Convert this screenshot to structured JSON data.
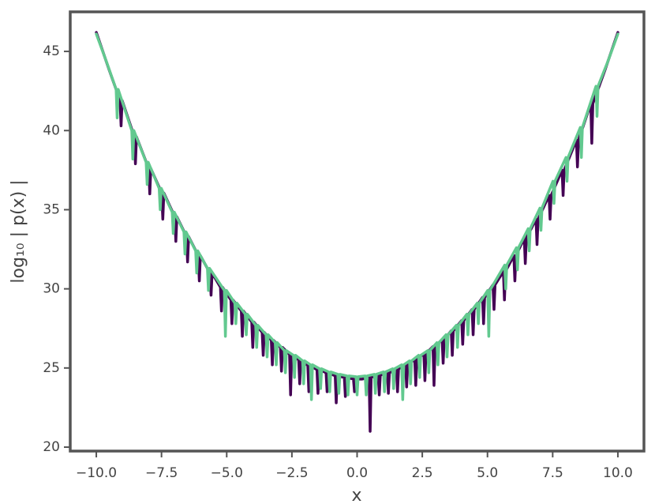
{
  "chart_data": {
    "type": "line",
    "xlabel": "x",
    "ylabel": "log₁₀ | p(x) |",
    "xlim": [
      -11,
      11
    ],
    "ylim": [
      19.75,
      47.5
    ],
    "xticks": [
      {
        "value": -10,
        "label": "−10.0"
      },
      {
        "value": -7.5,
        "label": "−7.5"
      },
      {
        "value": -5,
        "label": "−5.0"
      },
      {
        "value": -2.5,
        "label": "−2.5"
      },
      {
        "value": 0,
        "label": "0.0"
      },
      {
        "value": 2.5,
        "label": "2.5"
      },
      {
        "value": 5,
        "label": "5.0"
      },
      {
        "value": 7.5,
        "label": "7.5"
      },
      {
        "value": 10,
        "label": "10.0"
      }
    ],
    "yticks": [
      20,
      25,
      30,
      35,
      40,
      45
    ],
    "grid": false,
    "series": [
      {
        "color": "#440154",
        "x": [
          -10,
          -9.5,
          -9.09,
          -9.05,
          -9.01,
          -8.54,
          -8.5,
          -8.46,
          -7.99,
          -7.95,
          -7.91,
          -7.49,
          -7.45,
          -7.41,
          -6.99,
          -6.95,
          -6.91,
          -6.54,
          -6.5,
          -6.46,
          -6.09,
          -6.05,
          -6.01,
          -5.64,
          -5.6,
          -5.56,
          -5.24,
          -5.2,
          -5.16,
          -4.84,
          -4.8,
          -4.76,
          -4.44,
          -4.4,
          -4.36,
          -4.04,
          -4.0,
          -3.96,
          -3.64,
          -3.6,
          -3.56,
          -3.29,
          -3.25,
          -3.21,
          -2.94,
          -2.9,
          -2.86,
          -2.59,
          -2.55,
          -2.51,
          -2.24,
          -2.2,
          -2.16,
          -1.89,
          -1.85,
          -1.81,
          -1.54,
          -1.5,
          -1.46,
          -1.19,
          -1.15,
          -1.11,
          -0.84,
          -0.8,
          -0.76,
          -0.49,
          -0.45,
          -0.41,
          -0.14,
          -0.1,
          -0.06,
          0.2,
          0.46,
          0.5,
          0.54,
          0.81,
          0.85,
          0.89,
          1.16,
          1.2,
          1.24,
          1.51,
          1.55,
          1.59,
          1.86,
          1.9,
          1.94,
          2.21,
          2.25,
          2.29,
          2.56,
          2.6,
          2.64,
          2.91,
          2.95,
          2.99,
          3.26,
          3.3,
          3.34,
          3.61,
          3.65,
          3.69,
          4.01,
          4.05,
          4.09,
          4.41,
          4.45,
          4.49,
          4.81,
          4.85,
          4.89,
          5.21,
          5.25,
          5.29,
          5.61,
          5.65,
          5.69,
          6.01,
          6.05,
          6.09,
          6.41,
          6.45,
          6.49,
          6.86,
          6.9,
          6.94,
          7.36,
          7.4,
          7.44,
          7.86,
          7.9,
          7.94,
          8.41,
          8.45,
          8.49,
          8.96,
          9.0,
          9.04,
          9.5,
          10
        ],
        "values": [
          46.2,
          43.8,
          41.9,
          40.3,
          41.9,
          39.6,
          37.9,
          39.6,
          37.6,
          36.0,
          37.6,
          36.05,
          34.4,
          36.05,
          34.55,
          33.0,
          34.55,
          33.3,
          31.7,
          33.3,
          32.1,
          30.5,
          32.1,
          31.0,
          29.6,
          31.0,
          30.1,
          28.6,
          30.1,
          29.3,
          27.8,
          29.3,
          28.6,
          27.0,
          28.6,
          27.9,
          26.3,
          27.9,
          27.25,
          25.8,
          27.25,
          26.75,
          25.2,
          26.75,
          26.3,
          24.8,
          26.3,
          25.85,
          23.3,
          25.85,
          25.5,
          24.0,
          25.5,
          25.15,
          23.5,
          25.15,
          24.9,
          23.4,
          24.9,
          24.7,
          23.5,
          24.7,
          24.5,
          22.8,
          24.5,
          24.4,
          23.2,
          24.4,
          24.3,
          23.5,
          24.3,
          24.3,
          24.4,
          21.0,
          24.4,
          24.55,
          23.3,
          24.55,
          24.7,
          23.4,
          24.7,
          24.95,
          23.5,
          24.95,
          25.2,
          23.8,
          25.2,
          25.55,
          23.9,
          25.55,
          25.9,
          24.2,
          25.9,
          26.35,
          23.9,
          26.35,
          26.8,
          25.3,
          26.8,
          27.35,
          25.8,
          27.35,
          28.0,
          26.5,
          28.0,
          28.7,
          27.1,
          28.7,
          29.45,
          27.8,
          29.45,
          30.25,
          28.7,
          30.25,
          31.1,
          29.3,
          31.1,
          32.1,
          30.5,
          32.1,
          33.2,
          31.6,
          33.2,
          34.4,
          32.8,
          34.4,
          35.9,
          34.4,
          35.9,
          37.5,
          35.9,
          37.5,
          39.4,
          37.7,
          39.4,
          41.7,
          39.2,
          41.7,
          43.8,
          46.2
        ]
      },
      {
        "color": "#62c98f",
        "x": [
          -10,
          -9.6,
          -9.24,
          -9.2,
          -9.16,
          -8.64,
          -8.6,
          -8.56,
          -8.09,
          -8.05,
          -8.01,
          -7.59,
          -7.55,
          -7.51,
          -7.09,
          -7.05,
          -7.01,
          -6.64,
          -6.6,
          -6.56,
          -6.19,
          -6.15,
          -6.11,
          -5.74,
          -5.7,
          -5.66,
          -5.09,
          -5.05,
          -5.01,
          -4.69,
          -4.65,
          -4.61,
          -4.29,
          -4.25,
          -4.21,
          -3.89,
          -3.85,
          -3.81,
          -3.49,
          -3.45,
          -3.41,
          -3.14,
          -3.1,
          -3.06,
          -2.79,
          -2.75,
          -2.71,
          -2.44,
          -2.4,
          -2.36,
          -2.09,
          -2.05,
          -2.01,
          -1.79,
          -1.75,
          -1.71,
          -1.44,
          -1.4,
          -1.36,
          -1.09,
          -1.05,
          -1.01,
          -0.74,
          -0.7,
          -0.66,
          -0.39,
          -0.35,
          -0.31,
          -0.04,
          0.0,
          0.04,
          0.31,
          0.35,
          0.39,
          0.66,
          0.7,
          0.74,
          1.01,
          1.05,
          1.09,
          1.36,
          1.4,
          1.44,
          1.71,
          1.75,
          1.79,
          2.01,
          2.05,
          2.09,
          2.36,
          2.4,
          2.44,
          2.71,
          2.75,
          2.79,
          3.06,
          3.1,
          3.14,
          3.41,
          3.45,
          3.49,
          3.81,
          3.85,
          3.89,
          4.21,
          4.25,
          4.29,
          4.61,
          4.65,
          4.69,
          5.01,
          5.05,
          5.09,
          5.66,
          5.7,
          5.74,
          6.11,
          6.15,
          6.19,
          6.56,
          6.6,
          6.64,
          7.01,
          7.05,
          7.09,
          7.51,
          7.55,
          7.59,
          8.01,
          8.05,
          8.09,
          8.56,
          8.6,
          8.64,
          9.16,
          9.2,
          9.24,
          9.6,
          10
        ],
        "values": [
          46.1,
          44.3,
          42.6,
          40.8,
          42.6,
          40.0,
          38.2,
          40.0,
          38.0,
          36.6,
          38.0,
          36.35,
          35.0,
          36.35,
          34.85,
          33.5,
          34.85,
          33.6,
          32.2,
          33.6,
          32.4,
          31.0,
          32.4,
          31.3,
          29.9,
          31.3,
          29.9,
          27.0,
          29.9,
          29.1,
          27.8,
          29.1,
          28.4,
          27.1,
          28.4,
          27.7,
          26.3,
          27.7,
          27.1,
          25.7,
          27.1,
          26.6,
          25.2,
          26.6,
          26.1,
          24.7,
          26.1,
          25.8,
          24.4,
          25.8,
          25.45,
          24.0,
          25.45,
          25.2,
          23.0,
          25.2,
          24.95,
          23.7,
          24.95,
          24.75,
          23.5,
          24.75,
          24.6,
          23.4,
          24.6,
          24.5,
          23.3,
          24.5,
          24.45,
          23.3,
          24.45,
          24.5,
          23.3,
          24.5,
          24.6,
          23.4,
          24.6,
          24.75,
          23.5,
          24.75,
          24.95,
          23.7,
          24.95,
          25.2,
          23.0,
          25.2,
          25.45,
          24.0,
          25.45,
          25.8,
          24.4,
          25.8,
          26.1,
          24.7,
          26.1,
          26.6,
          25.2,
          26.6,
          27.1,
          25.7,
          27.1,
          27.7,
          26.3,
          27.7,
          28.4,
          27.1,
          28.4,
          29.1,
          27.8,
          29.1,
          29.9,
          27.0,
          29.9,
          31.5,
          30.0,
          31.5,
          32.6,
          31.2,
          32.6,
          33.8,
          32.4,
          33.8,
          35.1,
          33.7,
          35.1,
          36.8,
          35.4,
          36.8,
          38.3,
          36.8,
          38.3,
          40.2,
          38.3,
          40.2,
          42.8,
          40.9,
          42.8,
          44.3,
          46.1
        ]
      }
    ]
  }
}
